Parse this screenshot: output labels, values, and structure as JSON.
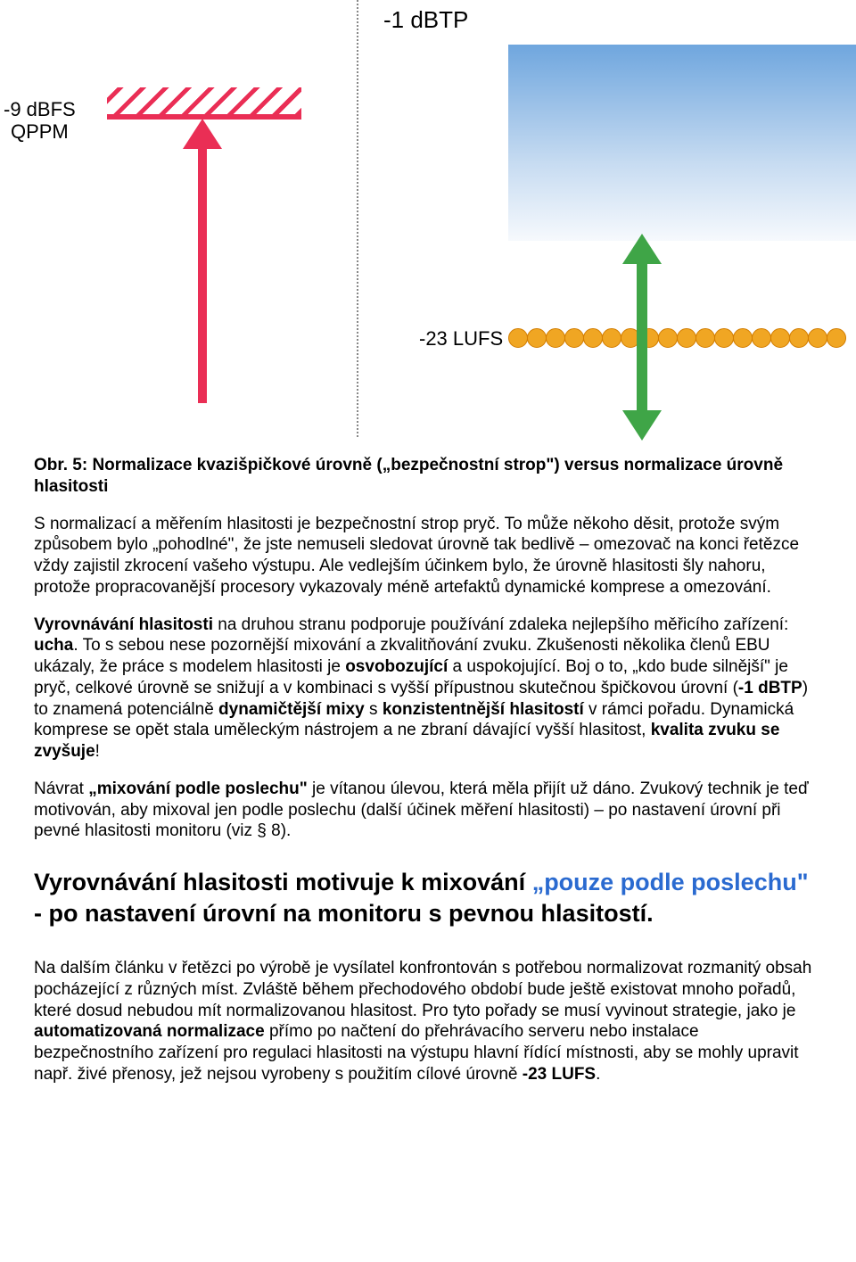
{
  "diagram": {
    "top_label": "-1 dBTP",
    "left_label_line1": "-9 dBFS",
    "left_label_line2": "QPPM",
    "mid_label": "-23 LUFS",
    "colors": {
      "red": "#ea2e55",
      "green": "#3fa547",
      "orange_fill": "#f0a623",
      "orange_border": "#d27d00",
      "blue_top": "#6fa6de",
      "blue_bottom": "#f6f9fd",
      "divider": "#888888"
    },
    "bead_count": 18
  },
  "caption": "Obr. 5: Normalizace kvazišpičkové úrovně („bezpečnostní strop\") versus normalizace úrovně hlasitosti",
  "p1": "S normalizací a měřením hlasitosti je bezpečnostní strop pryč. To může někoho děsit, protože svým způsobem bylo „pohodlné\", že jste nemuseli sledovat úrovně tak bedlivě – omezovač na konci řetězce vždy zajistil zkrocení vašeho výstupu. Ale vedlejším účinkem bylo, že úrovně hlasitosti šly nahoru, protože propracovanější procesory vykazovaly méně artefaktů dynamické komprese a omezování.",
  "p2_prefix_bold": "Vyrovnávání hlasitosti",
  "p2_a": " na druhou stranu podporuje používání zdaleka nejlepšího měřicího zařízení: ",
  "p2_ear_bold": "ucha",
  "p2_b": ". To s sebou nese pozornější mixování a zkvalitňování zvuku. Zkušenosti několika členů EBU ukázaly, že práce s modelem hlasitosti je ",
  "p2_bold_c": "osvobozující",
  "p2_c": " a uspokojující. Boj o to, „kdo bude silnější\" je pryč, celkové úrovně se snižují a v kombinaci s vyšší přípustnou skutečnou špičkovou úrovní (",
  "p2_bold_d": "-1 dBTP",
  "p2_d": ") to znamená potenciálně ",
  "p2_bold_e": "dynamičtější mixy",
  "p2_e": " s ",
  "p2_bold_f": "konzistentnější hlasitostí",
  "p2_f": " v rámci pořadu. Dynamická komprese se opět stala uměleckým nástrojem a ne zbraní dávající vyšší hlasitost, ",
  "p2_bold_g": "kvalita zvuku se zvyšuje",
  "p2_g": "!",
  "p3_a": "Návrat ",
  "p3_bold_a": "„mixování podle poslechu\"",
  "p3_b": " je vítanou úlevou, která měla přijít už dáno. Zvukový technik je teď motivován, aby mixoval jen podle poslechu (další účinek měření hlasitosti) – po nastavení úrovní při pevné hlasitosti monitoru (viz § 8).",
  "heading_a": "Vyrovnávání hlasitosti motivuje k mixování ",
  "heading_blue": "„pouze podle poslechu\"",
  "heading_b": " - po nastavení úrovní na monitoru s pevnou hlasitostí.",
  "p4_a": "Na dalším článku v řetězci po výrobě je vysílatel konfrontován s potřebou normalizovat rozmanitý obsah pocházející z různých míst. Zvláště během přechodového období bude ještě existovat mnoho pořadů, které dosud nebudou mít normalizovanou hlasitost. Pro tyto pořady se musí vyvinout strategie, jako je ",
  "p4_bold_a": "automatizovaná normalizace",
  "p4_b": " přímo po načtení do přehrávacího serveru nebo instalace bezpečnostního zařízení pro regulaci hlasitosti na výstupu hlavní řídící místnosti, aby se mohly upravit např. živé přenosy, jež nejsou vyrobeny s použitím cílové úrovně",
  "p4_bold_b": " -23 LUFS",
  "p4_c": "."
}
